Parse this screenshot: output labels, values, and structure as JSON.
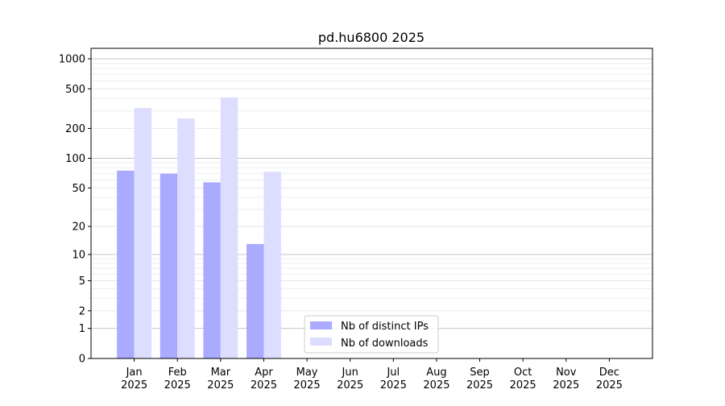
{
  "chart_data": {
    "type": "bar",
    "title": "pd.hu6800 2025",
    "xlabel": "",
    "ylabel": "",
    "y_scale": "log(1+y)",
    "ylim": [
      0,
      1273
    ],
    "y_ticks": [
      0,
      1,
      2,
      5,
      10,
      20,
      50,
      100,
      200,
      500,
      1000
    ],
    "grid": true,
    "legend_position": "bottom-center",
    "categories": [
      [
        "Jan",
        "2025"
      ],
      [
        "Feb",
        "2025"
      ],
      [
        "Mar",
        "2025"
      ],
      [
        "Apr",
        "2025"
      ],
      [
        "May",
        "2025"
      ],
      [
        "Jun",
        "2025"
      ],
      [
        "Jul",
        "2025"
      ],
      [
        "Aug",
        "2025"
      ],
      [
        "Sep",
        "2025"
      ],
      [
        "Oct",
        "2025"
      ],
      [
        "Nov",
        "2025"
      ],
      [
        "Dec",
        "2025"
      ]
    ],
    "series": [
      {
        "name": "Nb of distinct IPs",
        "color": "#aaaaff",
        "values": [
          75,
          70,
          57,
          13,
          null,
          null,
          null,
          null,
          null,
          null,
          null,
          null
        ]
      },
      {
        "name": "Nb of downloads",
        "color": "#ddddff",
        "values": [
          321,
          252,
          409,
          73,
          null,
          null,
          null,
          null,
          null,
          null,
          null,
          null
        ]
      }
    ]
  }
}
